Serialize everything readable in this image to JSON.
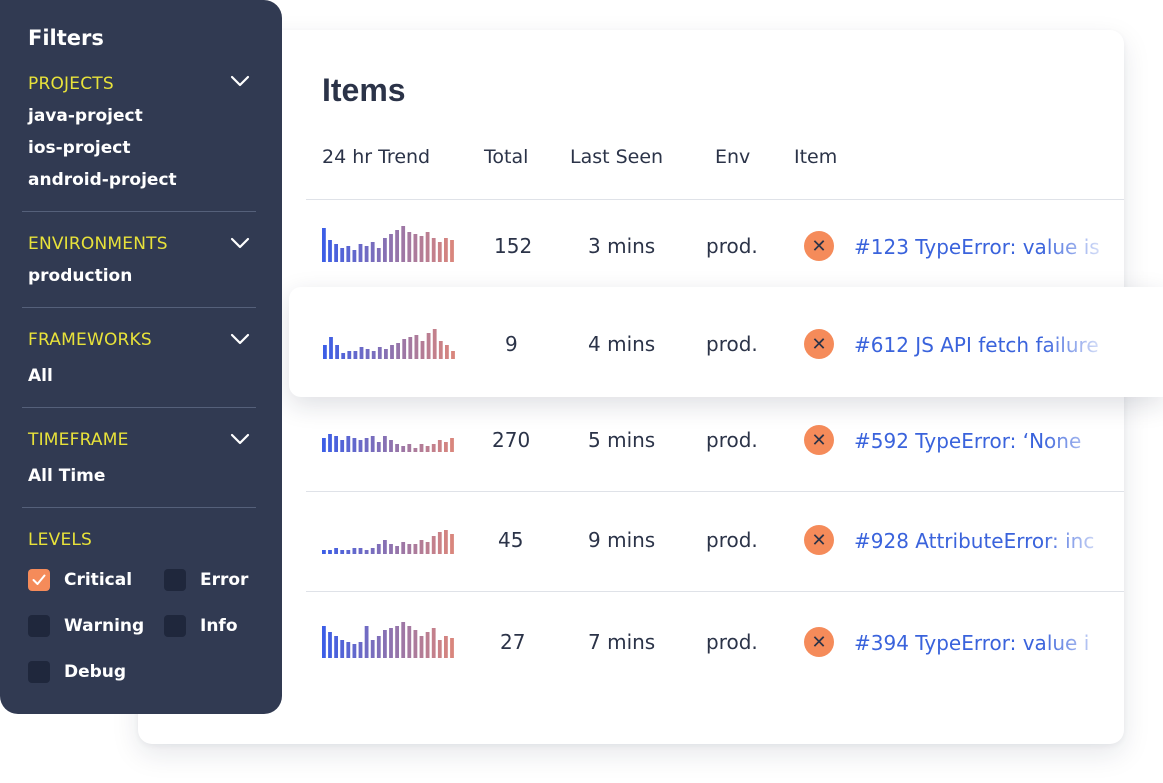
{
  "items": {
    "title": "Items",
    "columns": [
      "24 hr Trend",
      "Total",
      "Last Seen",
      "Env",
      "Item"
    ],
    "rows": [
      {
        "trend": [
          34,
          22,
          18,
          14,
          16,
          12,
          18,
          16,
          20,
          14,
          24,
          28,
          32,
          36,
          30,
          28,
          26,
          30,
          24,
          20,
          24,
          22
        ],
        "total": "152",
        "last_seen": "3 mins",
        "env": "prod.",
        "item": "#123 TypeError: value is"
      },
      {
        "trend": [
          14,
          22,
          14,
          6,
          8,
          8,
          12,
          10,
          8,
          12,
          10,
          14,
          16,
          20,
          22,
          24,
          18,
          26,
          30,
          18,
          14,
          8
        ],
        "total": "9",
        "last_seen": "4 mins",
        "env": "prod.",
        "item": "#612 JS API fetch failure"
      },
      {
        "trend": [
          14,
          18,
          16,
          12,
          16,
          14,
          12,
          14,
          16,
          10,
          16,
          12,
          8,
          6,
          8,
          4,
          8,
          6,
          8,
          12,
          10,
          14
        ],
        "total": "270",
        "last_seen": "5 mins",
        "env": "prod.",
        "item": "#592 TypeError:  ‘None"
      },
      {
        "trend": [
          4,
          4,
          6,
          4,
          4,
          6,
          6,
          4,
          6,
          10,
          14,
          10,
          8,
          12,
          10,
          10,
          14,
          12,
          18,
          22,
          24,
          20
        ],
        "total": "45",
        "last_seen": "9 mins",
        "env": "prod.",
        "item": "#928 AttributeError: inc"
      },
      {
        "trend": [
          32,
          26,
          22,
          18,
          16,
          14,
          16,
          32,
          18,
          22,
          28,
          30,
          32,
          36,
          32,
          28,
          22,
          26,
          30,
          18,
          22,
          20
        ],
        "total": "27",
        "last_seen": "7 mins",
        "env": "prod.",
        "item": "#394 TypeError: value i"
      }
    ]
  },
  "filters": {
    "title": "Filters",
    "projects": {
      "title": "PROJECTS",
      "values": [
        "java-project",
        "ios-project",
        "android-project"
      ]
    },
    "environments": {
      "title": "ENVIRONMENTS",
      "values": [
        "production"
      ]
    },
    "frameworks": {
      "title": "FRAMEWORKS",
      "values": [
        "All"
      ]
    },
    "timeframe": {
      "title": "TIMEFRAME",
      "values": [
        "All Time"
      ]
    },
    "levels": {
      "title": "LEVELS",
      "options": [
        {
          "label": "Critical",
          "checked": true
        },
        {
          "label": "Error",
          "checked": false
        },
        {
          "label": "Warning",
          "checked": false
        },
        {
          "label": "Info",
          "checked": false
        },
        {
          "label": "Debug",
          "checked": false
        }
      ]
    }
  },
  "icons": {
    "expand": "chevron-down-icon",
    "error": "close-icon",
    "checked": "check-icon"
  },
  "colors": {
    "panel": "#313a52",
    "section_title": "#e8e23a",
    "accent": "#f58b5a",
    "link": "#3a63dc",
    "trend_start": "#3d5ee6",
    "trend_end": "#d9867d"
  }
}
